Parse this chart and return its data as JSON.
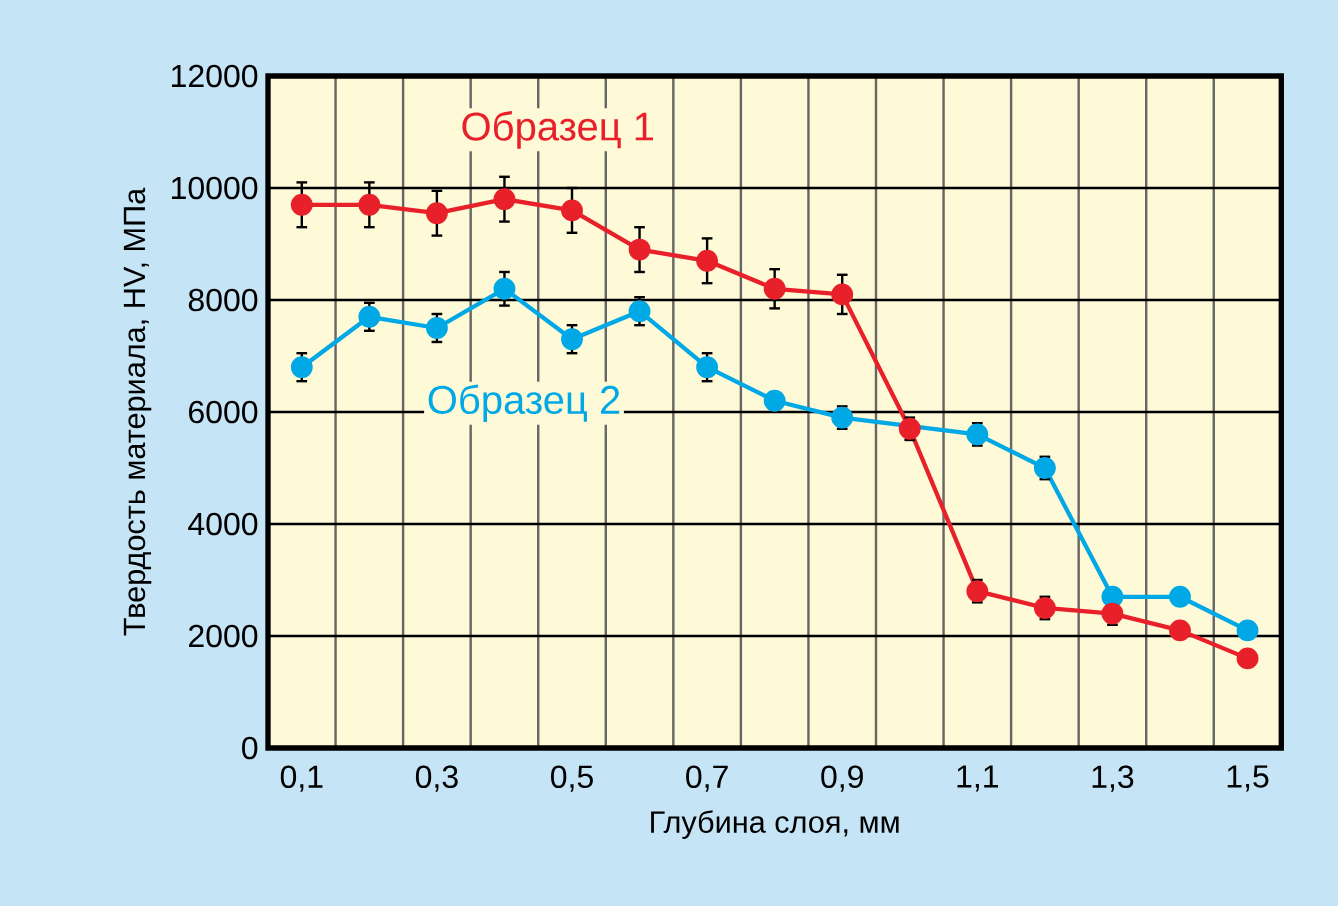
{
  "chart_data": {
    "type": "line",
    "xlabel": "Глубина слоя, мм",
    "ylabel": "Твердость материала, HV, МПа",
    "x": [
      0.1,
      0.2,
      0.3,
      0.4,
      0.5,
      0.6,
      0.7,
      0.8,
      0.9,
      1.0,
      1.1,
      1.2,
      1.3,
      1.4,
      1.5
    ],
    "xlim": [
      0.05,
      1.55
    ],
    "xticks": [
      {
        "value": 0.1,
        "label": "0,1"
      },
      {
        "value": 0.3,
        "label": "0,3"
      },
      {
        "value": 0.5,
        "label": "0,5"
      },
      {
        "value": 0.7,
        "label": "0,7"
      },
      {
        "value": 0.9,
        "label": "0,9"
      },
      {
        "value": 1.1,
        "label": "1,1"
      },
      {
        "value": 1.3,
        "label": "1,3"
      },
      {
        "value": 1.5,
        "label": "1,5"
      }
    ],
    "ylim": [
      0,
      12000
    ],
    "yticks": [
      0,
      2000,
      4000,
      6000,
      8000,
      10000,
      12000
    ],
    "grid": true,
    "legend": false,
    "marker": "circle",
    "line_style": "solid",
    "series": [
      {
        "name": "Образец 1",
        "color": "#e8202a",
        "values": [
          9700,
          9700,
          9550,
          9800,
          9600,
          8900,
          8700,
          8200,
          8100,
          5700,
          2800,
          2500,
          2400,
          2100,
          1600
        ],
        "errors": [
          400,
          400,
          400,
          400,
          400,
          400,
          400,
          350,
          350,
          200,
          200,
          200,
          200,
          null,
          null
        ]
      },
      {
        "name": "Образец 2",
        "color": "#00a8e6",
        "x": [
          0.1,
          0.2,
          0.3,
          0.4,
          0.5,
          0.6,
          0.7,
          0.8,
          0.9,
          1.1,
          1.2,
          1.3,
          1.4,
          1.5
        ],
        "values": [
          6800,
          7700,
          7500,
          8200,
          7300,
          7800,
          6800,
          6200,
          5900,
          5600,
          5000,
          2700,
          2700,
          2100
        ],
        "errors": [
          250,
          250,
          250,
          300,
          250,
          250,
          250,
          150,
          200,
          200,
          200,
          null,
          null,
          null
        ]
      }
    ]
  }
}
